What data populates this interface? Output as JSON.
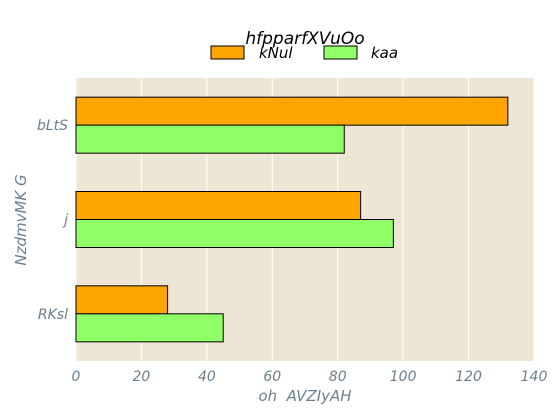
{
  "chart_data": {
    "type": "bar",
    "orientation": "horizontal",
    "title": "hfpparfXVuOo",
    "xlabel": "oh  AVZIyAH",
    "ylabel": "NzdmvMK G",
    "categories": [
      "bLtS",
      "j",
      "RKsl"
    ],
    "series": [
      {
        "name": "kNul",
        "values": [
          132,
          87,
          28
        ],
        "color": "#ffa500"
      },
      {
        "name": "kaa",
        "values": [
          82,
          97,
          45
        ],
        "color": "#90ff68"
      }
    ],
    "xlim": [
      0,
      140
    ],
    "xticks": [
      0,
      20,
      40,
      60,
      80,
      100,
      120,
      140
    ],
    "grid": true,
    "legend_position": "top-center",
    "background_color": "#ede6d4"
  }
}
